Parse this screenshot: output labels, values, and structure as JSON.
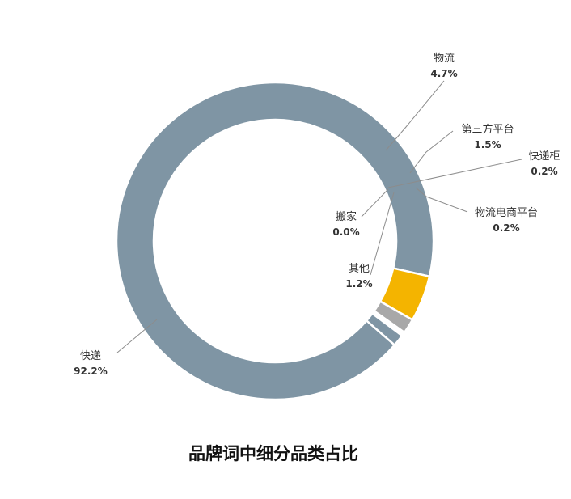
{
  "chart_data": {
    "type": "pie",
    "variant": "donut",
    "title": "品牌词中细分品类占比",
    "categories": [
      "快递",
      "物流",
      "第三方平台",
      "快递柜",
      "物流电商平台",
      "其他",
      "搬家"
    ],
    "values": [
      92.2,
      4.7,
      1.5,
      0.2,
      0.2,
      1.2,
      0.0
    ],
    "value_labels": [
      "92.2%",
      "4.7%",
      "1.5%",
      "0.2%",
      "0.2%",
      "1.2%",
      "0.0%"
    ],
    "colors": [
      "#7f95a4",
      "#f4b400",
      "#a8a8a8",
      "#7f95a4",
      "#2e5f90",
      "#7f95a4",
      "#7f95a4"
    ],
    "legend": "none",
    "label_style": "outside labels with leader lines"
  }
}
